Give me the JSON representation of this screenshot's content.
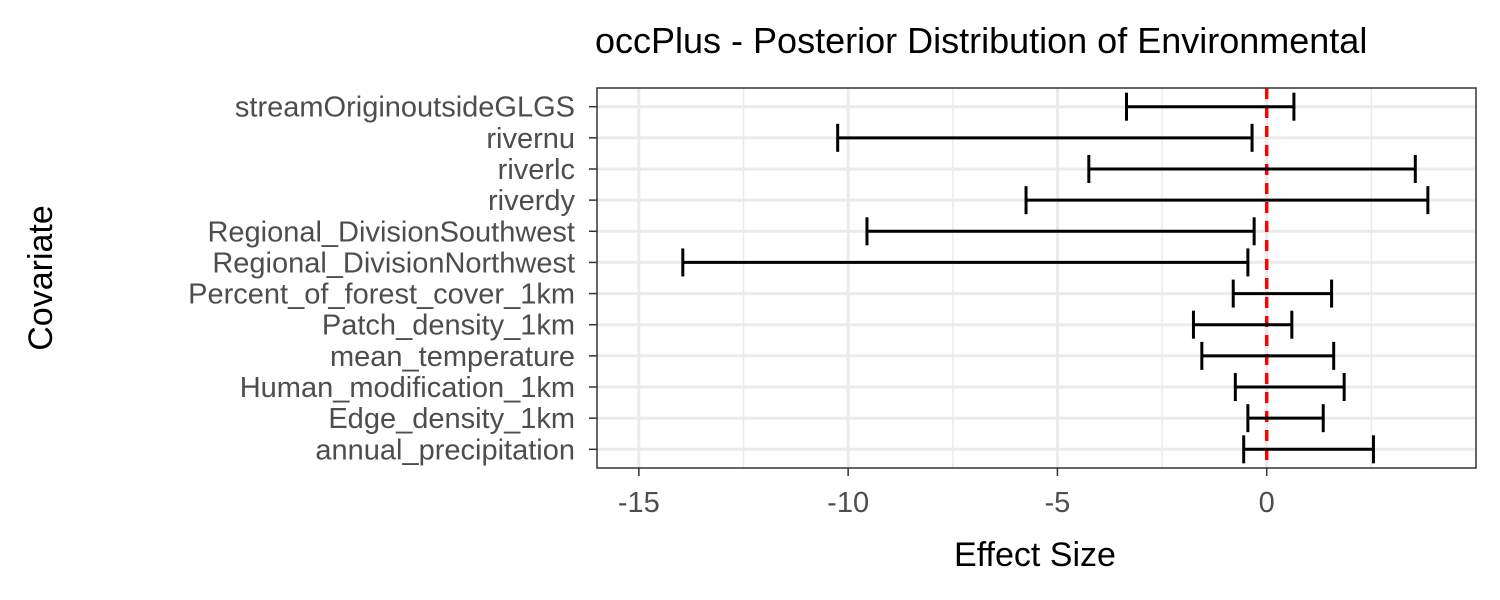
{
  "chart_data": {
    "type": "errorbar",
    "title": "occPlus - Posterior Distribution of Environmental",
    "xlabel": "Effect Size",
    "ylabel": "Covariate",
    "xlim": [
      -16,
      5
    ],
    "xticks": [
      -15,
      -10,
      -5,
      0
    ],
    "xtick_labels": [
      "-15",
      "-10",
      "-5",
      "0"
    ],
    "grid": true,
    "reference_line": {
      "x": 0,
      "color": "#ff0000",
      "style": "dashed"
    },
    "colors": {
      "interval": "#000000",
      "grid": "#ebebeb",
      "panel_border": "#333333",
      "tick_text": "#4d4d4d"
    },
    "categories": [
      "streamOriginoutsideGLGS",
      "rivernu",
      "riverlc",
      "riverdy",
      "Regional_DivisionSouthwest",
      "Regional_DivisionNorthwest",
      "Percent_of_forest_cover_1km",
      "Patch_density_1km",
      "mean_temperature",
      "Human_modification_1km",
      "Edge_density_1km",
      "annual_precipitation"
    ],
    "intervals": [
      {
        "lower": -3.35,
        "upper": 0.65
      },
      {
        "lower": -10.25,
        "upper": -0.35
      },
      {
        "lower": -4.25,
        "upper": 3.55
      },
      {
        "lower": -5.75,
        "upper": 3.85
      },
      {
        "lower": -9.55,
        "upper": -0.3
      },
      {
        "lower": -13.95,
        "upper": -0.45
      },
      {
        "lower": -0.8,
        "upper": 1.55
      },
      {
        "lower": -1.75,
        "upper": 0.6
      },
      {
        "lower": -1.55,
        "upper": 1.6
      },
      {
        "lower": -0.75,
        "upper": 1.85
      },
      {
        "lower": -0.45,
        "upper": 1.35
      },
      {
        "lower": -0.55,
        "upper": 2.55
      }
    ]
  }
}
